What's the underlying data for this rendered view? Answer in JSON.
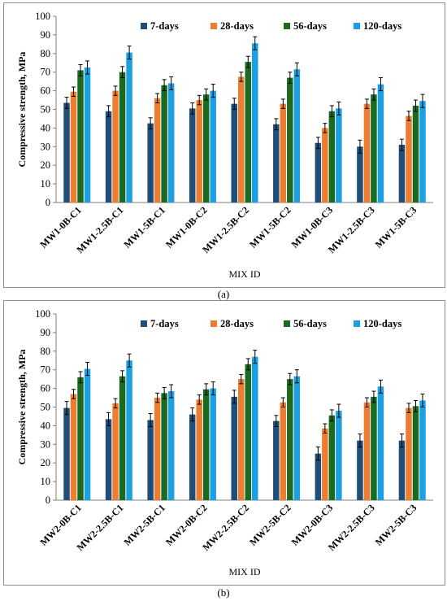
{
  "colors": {
    "d7": "#1f4e79",
    "d28": "#ed7d31",
    "d56": "#1a6b1f",
    "d120": "#1ba1e2"
  },
  "captions": [
    "(a)",
    "(b)"
  ],
  "chart_data": [
    {
      "type": "bar",
      "title": "",
      "xlabel": "MIX ID",
      "ylabel": "Compressive strength, MPa",
      "ylim": [
        0,
        100
      ],
      "yticks": [
        0,
        10,
        20,
        30,
        40,
        50,
        60,
        70,
        80,
        90,
        100
      ],
      "legend_position": "top",
      "grid": false,
      "error_bars": true,
      "categories": [
        "MW1-0B-C1",
        "MW1-2.5B-C1",
        "MW1-5B-C1",
        "MW1-0B-C2",
        "MW1-2.5B-C2",
        "MW1-5B-C2",
        "MW1-0B-C3",
        "MW1-2.5B-C3",
        "MW1-5B-C3"
      ],
      "series": [
        {
          "name": "7-days",
          "values": [
            53.5,
            49,
            42.5,
            50.5,
            53,
            42,
            32,
            30,
            31
          ],
          "errors": [
            3,
            3,
            3,
            3,
            3,
            3,
            3,
            3.5,
            3
          ]
        },
        {
          "name": "28-days",
          "values": [
            59.5,
            60,
            56,
            55,
            67.5,
            53,
            40,
            53,
            46.5
          ],
          "errors": [
            2.5,
            2.5,
            2.5,
            2.5,
            2.5,
            2.5,
            2.5,
            2.5,
            2.5
          ]
        },
        {
          "name": "56-days",
          "values": [
            71,
            70,
            63,
            58,
            75.5,
            67,
            49,
            58,
            52
          ],
          "errors": [
            3,
            3,
            3,
            3,
            3,
            3,
            3,
            3,
            3
          ]
        },
        {
          "name": "120-days",
          "values": [
            72.5,
            80.5,
            64,
            60,
            85.5,
            71.5,
            50.5,
            63.5,
            54.5
          ],
          "errors": [
            3.5,
            3.5,
            3.5,
            3.5,
            3.5,
            3.5,
            3.5,
            3.5,
            3.5
          ]
        }
      ]
    },
    {
      "type": "bar",
      "title": "",
      "xlabel": "MIX ID",
      "ylabel": "Compressive strength, MPa",
      "ylim": [
        0,
        100
      ],
      "yticks": [
        0,
        10,
        20,
        30,
        40,
        50,
        60,
        70,
        80,
        90,
        100
      ],
      "legend_position": "top",
      "grid": false,
      "error_bars": true,
      "categories": [
        "MW2-0B-C1",
        "MW2-2.5B-C1",
        "MW2-5B-C1",
        "MW2-0B-C2",
        "MW2-2.5B-C2",
        "MW2-5B-C2",
        "MW2-0B-C3",
        "MW2-2.5B-C3",
        "MW2-5B-C3"
      ],
      "series": [
        {
          "name": "7-days",
          "values": [
            49.5,
            43.5,
            43,
            46,
            55.5,
            42.5,
            25,
            32,
            32
          ],
          "errors": [
            3.5,
            3.5,
            3.5,
            3.5,
            3.5,
            3,
            3.5,
            3.5,
            3.5
          ]
        },
        {
          "name": "28-days",
          "values": [
            57,
            52,
            55,
            54,
            65,
            52.5,
            38.5,
            52.5,
            49.5
          ],
          "errors": [
            2.5,
            2.5,
            2.5,
            2.5,
            2.5,
            2.5,
            2.5,
            2.5,
            2.5
          ]
        },
        {
          "name": "56-days",
          "values": [
            66,
            66.5,
            57.5,
            59.5,
            73,
            65,
            45.5,
            55.5,
            50.5
          ],
          "errors": [
            3,
            3,
            3,
            3,
            3,
            3,
            3,
            3,
            3
          ]
        },
        {
          "name": "120-days",
          "values": [
            70.5,
            75,
            58.5,
            60,
            77,
            66.5,
            48,
            61,
            53.5
          ],
          "errors": [
            3.5,
            3.5,
            3.5,
            3.5,
            3.5,
            3.5,
            3.5,
            3.5,
            3.5
          ]
        }
      ]
    }
  ]
}
